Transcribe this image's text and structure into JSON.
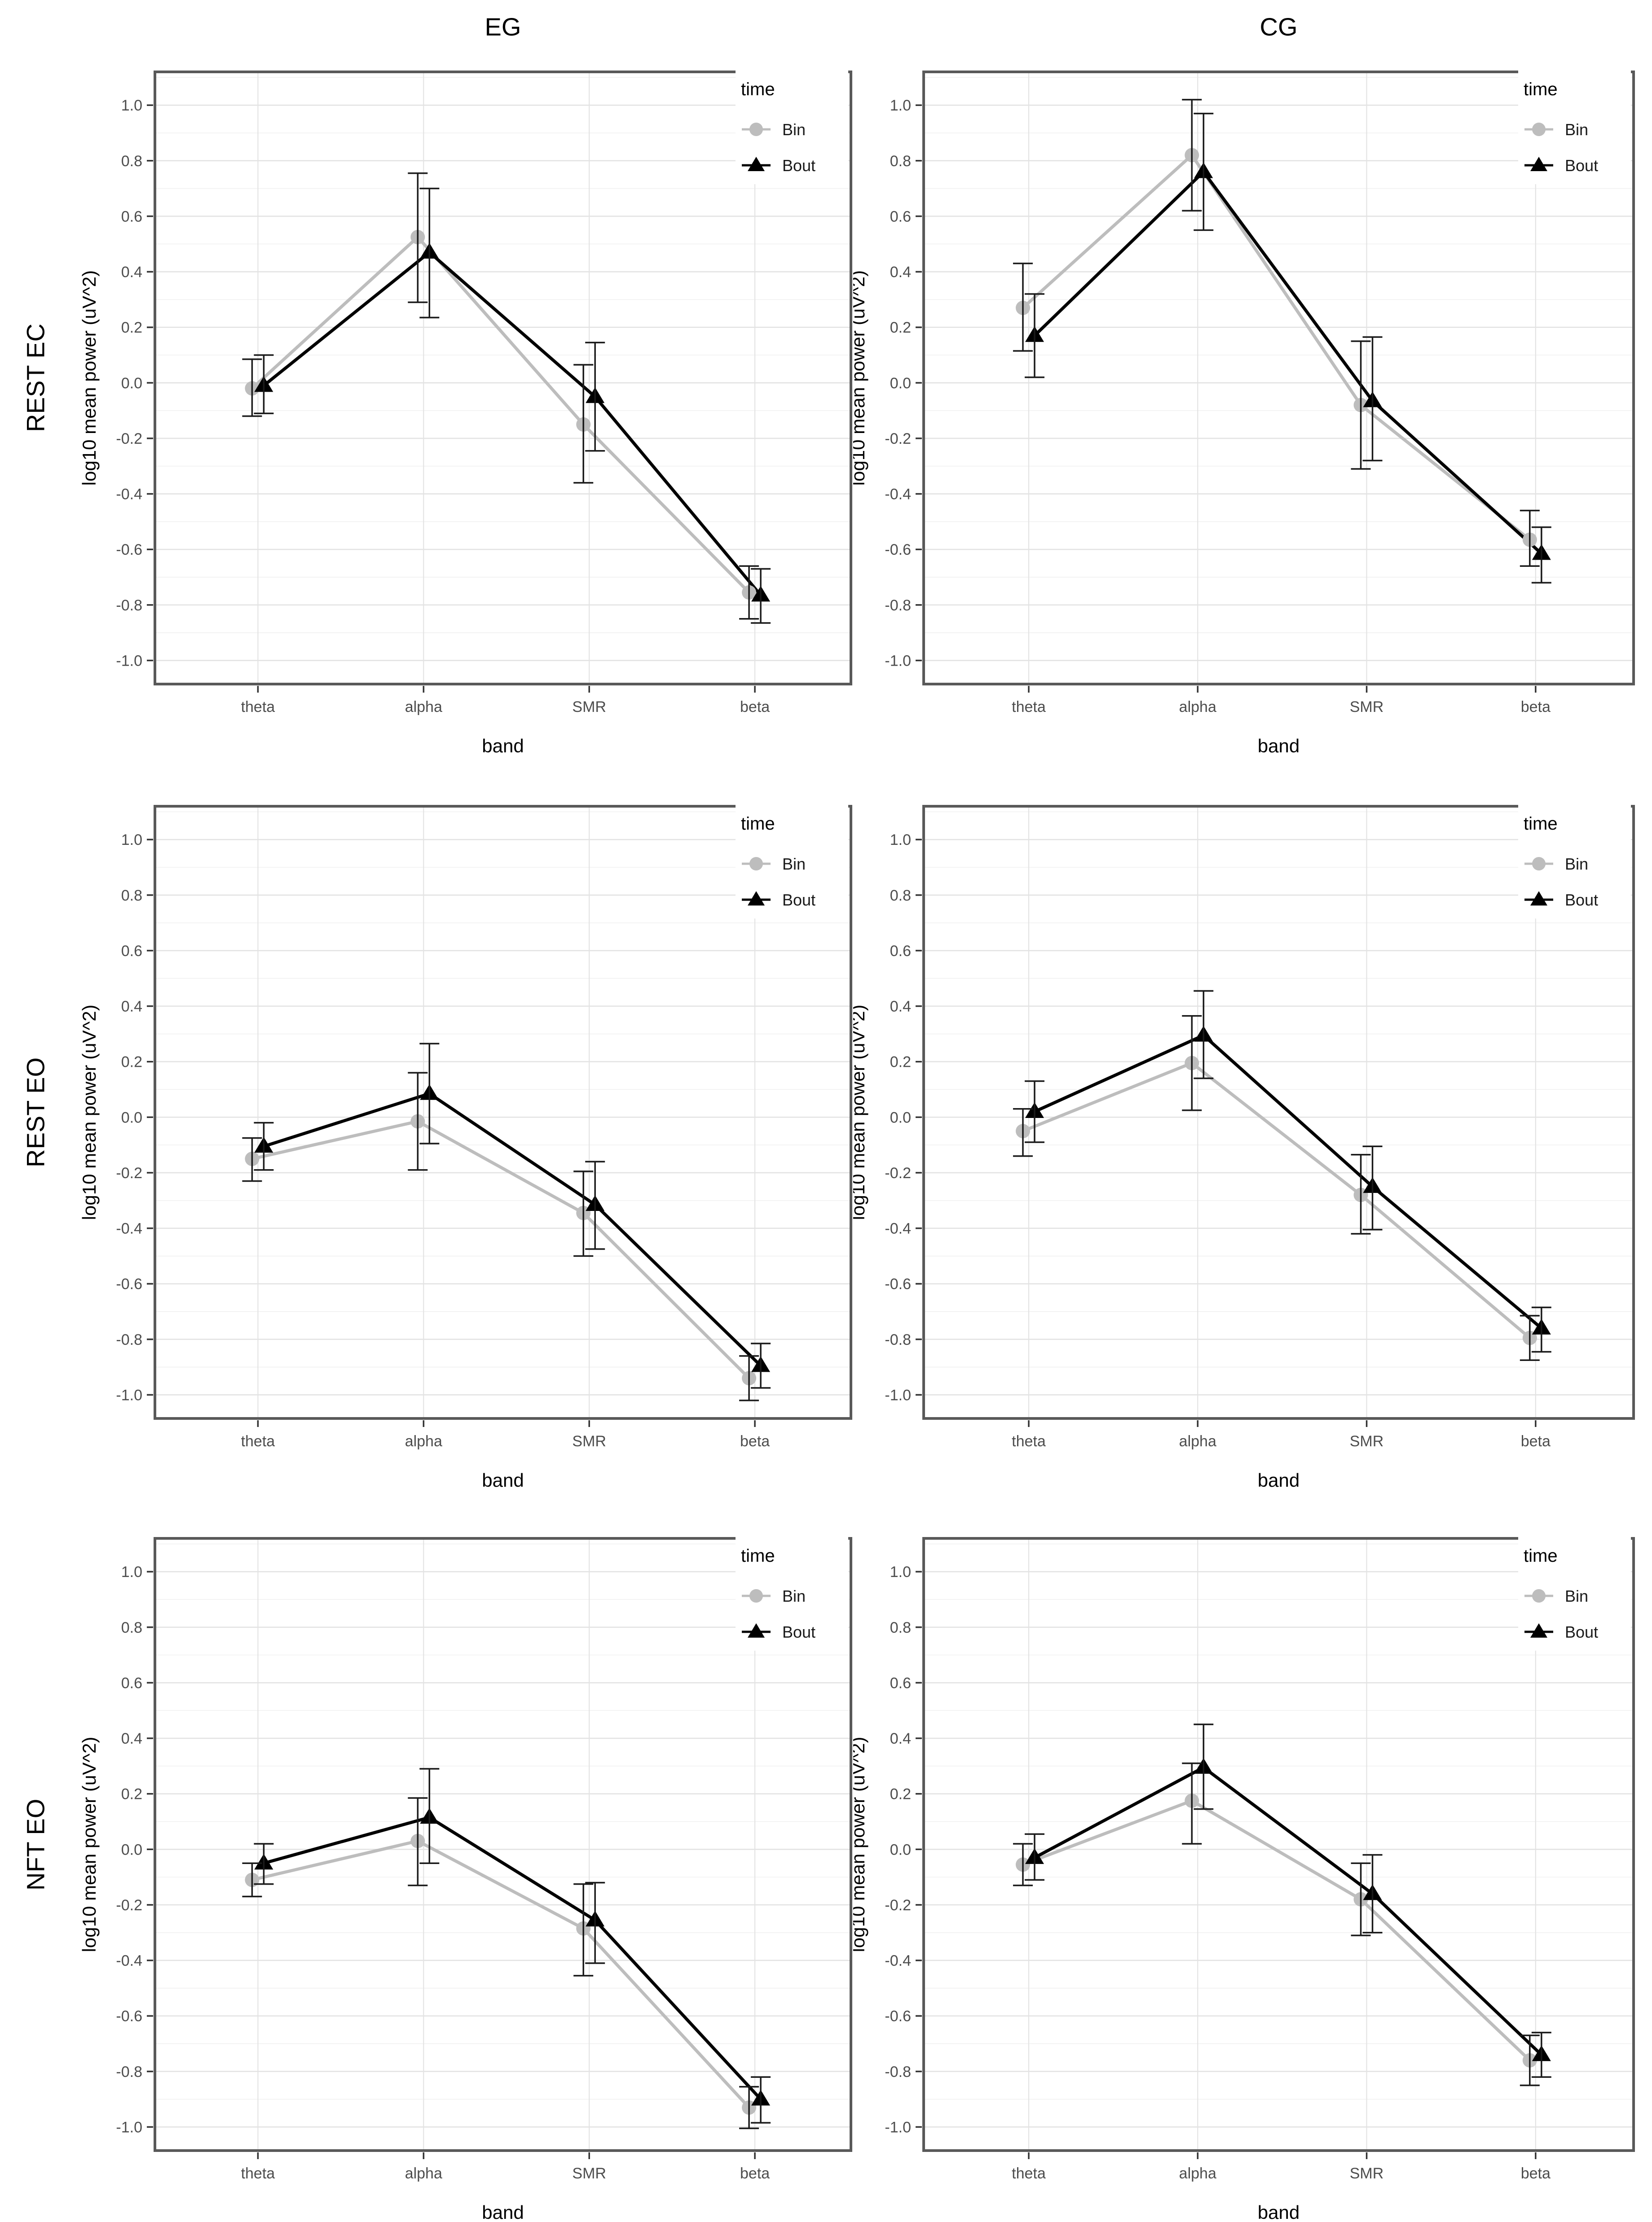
{
  "figure": {
    "column_titles": [
      "EG",
      "CG"
    ],
    "row_labels": [
      "REST EC",
      "REST EO",
      "NFT EO"
    ],
    "x_axis_title": "band",
    "y_axis_title": "log10 mean power (uV^2)",
    "categories": [
      "theta",
      "alpha",
      "SMR",
      "beta"
    ],
    "y_tick_labels": [
      "1.0",
      "0.8",
      "0.6",
      "0.4",
      "0.2",
      "0.0",
      "-0.2",
      "-0.4",
      "-0.6",
      "-0.8",
      "-1.0"
    ],
    "legend": {
      "title": "time",
      "items": [
        {
          "label": "Bin",
          "marker": "circle",
          "color": "#bdbdbd"
        },
        {
          "label": "Bout",
          "marker": "triangle",
          "color": "#000000"
        }
      ]
    },
    "colors": {
      "bin_gray": "#bdbdbd",
      "bout_black": "#000000",
      "error_bar": "#1a1a1a",
      "grid_major": "#e3e3e3",
      "grid_minor": "#f0f0f0",
      "panel_border": "#595959",
      "tick_mark": "#333333",
      "tick_text": "#4d4d4d",
      "background": "#ffffff"
    }
  },
  "chart_data": [
    {
      "type": "line",
      "panel": "REST EC / EG",
      "row": "REST EC",
      "column": "EG",
      "categories": [
        "theta",
        "alpha",
        "SMR",
        "beta"
      ],
      "xlabel": "band",
      "ylabel": "log10 mean power (uV^2)",
      "ylim": [
        -1.1,
        1.1
      ],
      "grid": true,
      "legend_position": "top-right-inside",
      "series": [
        {
          "name": "Bin",
          "marker": "circle",
          "color": "#bdbdbd",
          "values": [
            -0.02,
            0.525,
            -0.15,
            -0.755
          ],
          "err_low": [
            -0.12,
            0.29,
            -0.36,
            -0.85
          ],
          "err_high": [
            0.085,
            0.755,
            0.065,
            -0.66
          ]
        },
        {
          "name": "Bout",
          "marker": "triangle",
          "color": "#000000",
          "values": [
            -0.01,
            0.47,
            -0.05,
            -0.765
          ],
          "err_low": [
            -0.11,
            0.235,
            -0.245,
            -0.865
          ],
          "err_high": [
            0.1,
            0.7,
            0.145,
            -0.67
          ]
        }
      ]
    },
    {
      "type": "line",
      "panel": "REST EC / CG",
      "row": "REST EC",
      "column": "CG",
      "categories": [
        "theta",
        "alpha",
        "SMR",
        "beta"
      ],
      "xlabel": "band",
      "ylabel": "log10 mean power (uV^2)",
      "ylim": [
        -1.1,
        1.1
      ],
      "grid": true,
      "legend_position": "top-right-inside",
      "series": [
        {
          "name": "Bin",
          "marker": "circle",
          "color": "#bdbdbd",
          "values": [
            0.27,
            0.82,
            -0.08,
            -0.565
          ],
          "err_low": [
            0.115,
            0.62,
            -0.31,
            -0.66
          ],
          "err_high": [
            0.43,
            1.02,
            0.15,
            -0.46
          ]
        },
        {
          "name": "Bout",
          "marker": "triangle",
          "color": "#000000",
          "values": [
            0.17,
            0.76,
            -0.065,
            -0.615
          ],
          "err_low": [
            0.02,
            0.55,
            -0.28,
            -0.72
          ],
          "err_high": [
            0.32,
            0.97,
            0.165,
            -0.52
          ]
        }
      ]
    },
    {
      "type": "line",
      "panel": "REST EO / EG",
      "row": "REST EO",
      "column": "EG",
      "categories": [
        "theta",
        "alpha",
        "SMR",
        "beta"
      ],
      "xlabel": "band",
      "ylabel": "log10 mean power (uV^2)",
      "ylim": [
        -1.1,
        1.1
      ],
      "grid": true,
      "legend_position": "top-right-inside",
      "series": [
        {
          "name": "Bin",
          "marker": "circle",
          "color": "#bdbdbd",
          "values": [
            -0.15,
            -0.015,
            -0.345,
            -0.94
          ],
          "err_low": [
            -0.23,
            -0.19,
            -0.5,
            -1.02
          ],
          "err_high": [
            -0.075,
            0.16,
            -0.195,
            -0.86
          ]
        },
        {
          "name": "Bout",
          "marker": "triangle",
          "color": "#000000",
          "values": [
            -0.105,
            0.085,
            -0.315,
            -0.895
          ],
          "err_low": [
            -0.19,
            -0.095,
            -0.475,
            -0.975
          ],
          "err_high": [
            -0.02,
            0.265,
            -0.16,
            -0.815
          ]
        }
      ]
    },
    {
      "type": "line",
      "panel": "REST EO / CG",
      "row": "REST EO",
      "column": "CG",
      "categories": [
        "theta",
        "alpha",
        "SMR",
        "beta"
      ],
      "xlabel": "band",
      "ylabel": "log10 mean power (uV^2)",
      "ylim": [
        -1.1,
        1.1
      ],
      "grid": true,
      "legend_position": "top-right-inside",
      "series": [
        {
          "name": "Bin",
          "marker": "circle",
          "color": "#bdbdbd",
          "values": [
            -0.05,
            0.195,
            -0.28,
            -0.795
          ],
          "err_low": [
            -0.14,
            0.025,
            -0.42,
            -0.875
          ],
          "err_high": [
            0.03,
            0.365,
            -0.135,
            -0.715
          ]
        },
        {
          "name": "Bout",
          "marker": "triangle",
          "color": "#000000",
          "values": [
            0.02,
            0.295,
            -0.25,
            -0.76
          ],
          "err_low": [
            -0.09,
            0.14,
            -0.405,
            -0.845
          ],
          "err_high": [
            0.13,
            0.455,
            -0.105,
            -0.685
          ]
        }
      ]
    },
    {
      "type": "line",
      "panel": "NFT EO / EG",
      "row": "NFT EO",
      "column": "EG",
      "categories": [
        "theta",
        "alpha",
        "SMR",
        "beta"
      ],
      "xlabel": "band",
      "ylabel": "log10 mean power (uV^2)",
      "ylim": [
        -1.1,
        1.1
      ],
      "grid": true,
      "legend_position": "top-right-inside",
      "series": [
        {
          "name": "Bin",
          "marker": "circle",
          "color": "#bdbdbd",
          "values": [
            -0.11,
            0.03,
            -0.285,
            -0.93
          ],
          "err_low": [
            -0.17,
            -0.13,
            -0.455,
            -1.005
          ],
          "err_high": [
            -0.05,
            0.185,
            -0.125,
            -0.855
          ]
        },
        {
          "name": "Bout",
          "marker": "triangle",
          "color": "#000000",
          "values": [
            -0.05,
            0.115,
            -0.255,
            -0.9
          ],
          "err_low": [
            -0.125,
            -0.05,
            -0.41,
            -0.985
          ],
          "err_high": [
            0.02,
            0.29,
            -0.12,
            -0.82
          ]
        }
      ]
    },
    {
      "type": "line",
      "panel": "NFT EO / CG",
      "row": "NFT EO",
      "column": "CG",
      "categories": [
        "theta",
        "alpha",
        "SMR",
        "beta"
      ],
      "xlabel": "band",
      "ylabel": "log10 mean power (uV^2)",
      "ylim": [
        -1.1,
        1.1
      ],
      "grid": true,
      "legend_position": "top-right-inside",
      "series": [
        {
          "name": "Bin",
          "marker": "circle",
          "color": "#bdbdbd",
          "values": [
            -0.055,
            0.175,
            -0.18,
            -0.76
          ],
          "err_low": [
            -0.13,
            0.02,
            -0.31,
            -0.85
          ],
          "err_high": [
            0.02,
            0.31,
            -0.05,
            -0.67
          ]
        },
        {
          "name": "Bout",
          "marker": "triangle",
          "color": "#000000",
          "values": [
            -0.03,
            0.295,
            -0.16,
            -0.74
          ],
          "err_low": [
            -0.11,
            0.145,
            -0.3,
            -0.82
          ],
          "err_high": [
            0.055,
            0.45,
            -0.02,
            -0.66
          ]
        }
      ]
    }
  ]
}
